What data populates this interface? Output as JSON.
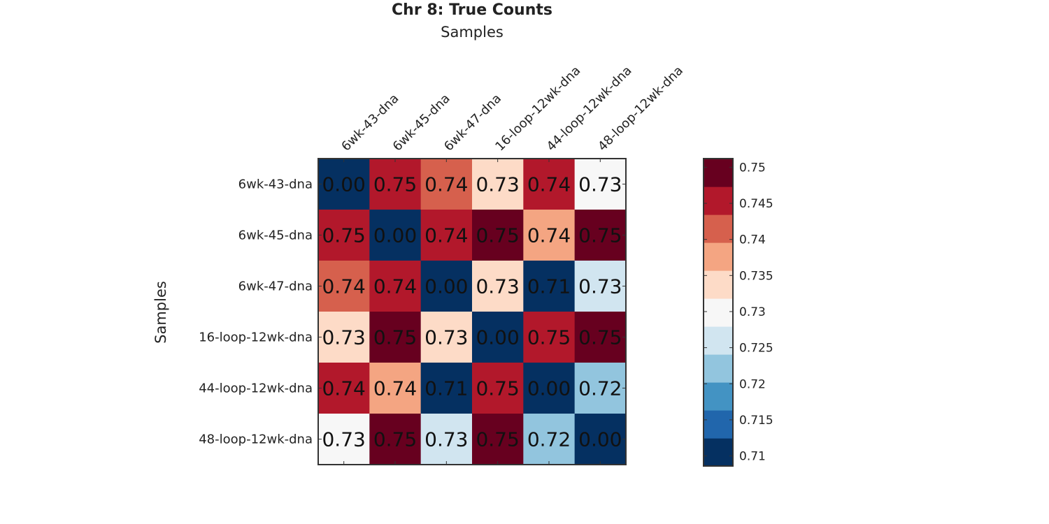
{
  "chart_data": {
    "type": "heatmap",
    "title": "Chr 8: True Counts",
    "xlabel": "Samples",
    "ylabel": "Samples",
    "categories": [
      "6wk-43-dna",
      "6wk-45-dna",
      "6wk-47-dna",
      "16-loop-12wk-dna",
      "44-loop-12wk-dna",
      "48-loop-12wk-dna"
    ],
    "values": [
      [
        0.0,
        0.746,
        0.742,
        0.733,
        0.745,
        0.73
      ],
      [
        0.746,
        0.0,
        0.745,
        0.751,
        0.738,
        0.751
      ],
      [
        0.742,
        0.745,
        0.0,
        0.733,
        0.709,
        0.727
      ],
      [
        0.733,
        0.751,
        0.733,
        0.0,
        0.746,
        0.751
      ],
      [
        0.745,
        0.738,
        0.709,
        0.746,
        0.0,
        0.722
      ],
      [
        0.73,
        0.751,
        0.727,
        0.751,
        0.722,
        0.0
      ]
    ],
    "value_labels": [
      [
        "0.00",
        "0.75",
        "0.74",
        "0.73",
        "0.74",
        "0.73"
      ],
      [
        "0.75",
        "0.00",
        "0.74",
        "0.75",
        "0.74",
        "0.75"
      ],
      [
        "0.74",
        "0.74",
        "0.00",
        "0.73",
        "0.71",
        "0.73"
      ],
      [
        "0.73",
        "0.75",
        "0.73",
        "0.00",
        "0.75",
        "0.75"
      ],
      [
        "0.74",
        "0.74",
        "0.71",
        "0.75",
        "0.00",
        "0.72"
      ],
      [
        "0.73",
        "0.75",
        "0.73",
        "0.75",
        "0.72",
        "0.00"
      ]
    ],
    "colorbar": {
      "range": [
        0.71,
        0.75
      ],
      "ticks": [
        0.71,
        0.715,
        0.72,
        0.725,
        0.73,
        0.735,
        0.74,
        0.745,
        0.75
      ],
      "tick_labels": [
        "0.71",
        "0.715",
        "0.72",
        "0.725",
        "0.73",
        "0.735",
        "0.74",
        "0.745",
        "0.75"
      ],
      "colors": [
        "#053061",
        "#2166ac",
        "#4393c3",
        "#92c5de",
        "#d1e5f0",
        "#f7f7f7",
        "#fddbc7",
        "#f4a582",
        "#d6604d",
        "#b2182b",
        "#67001f"
      ],
      "placement": "right"
    }
  }
}
